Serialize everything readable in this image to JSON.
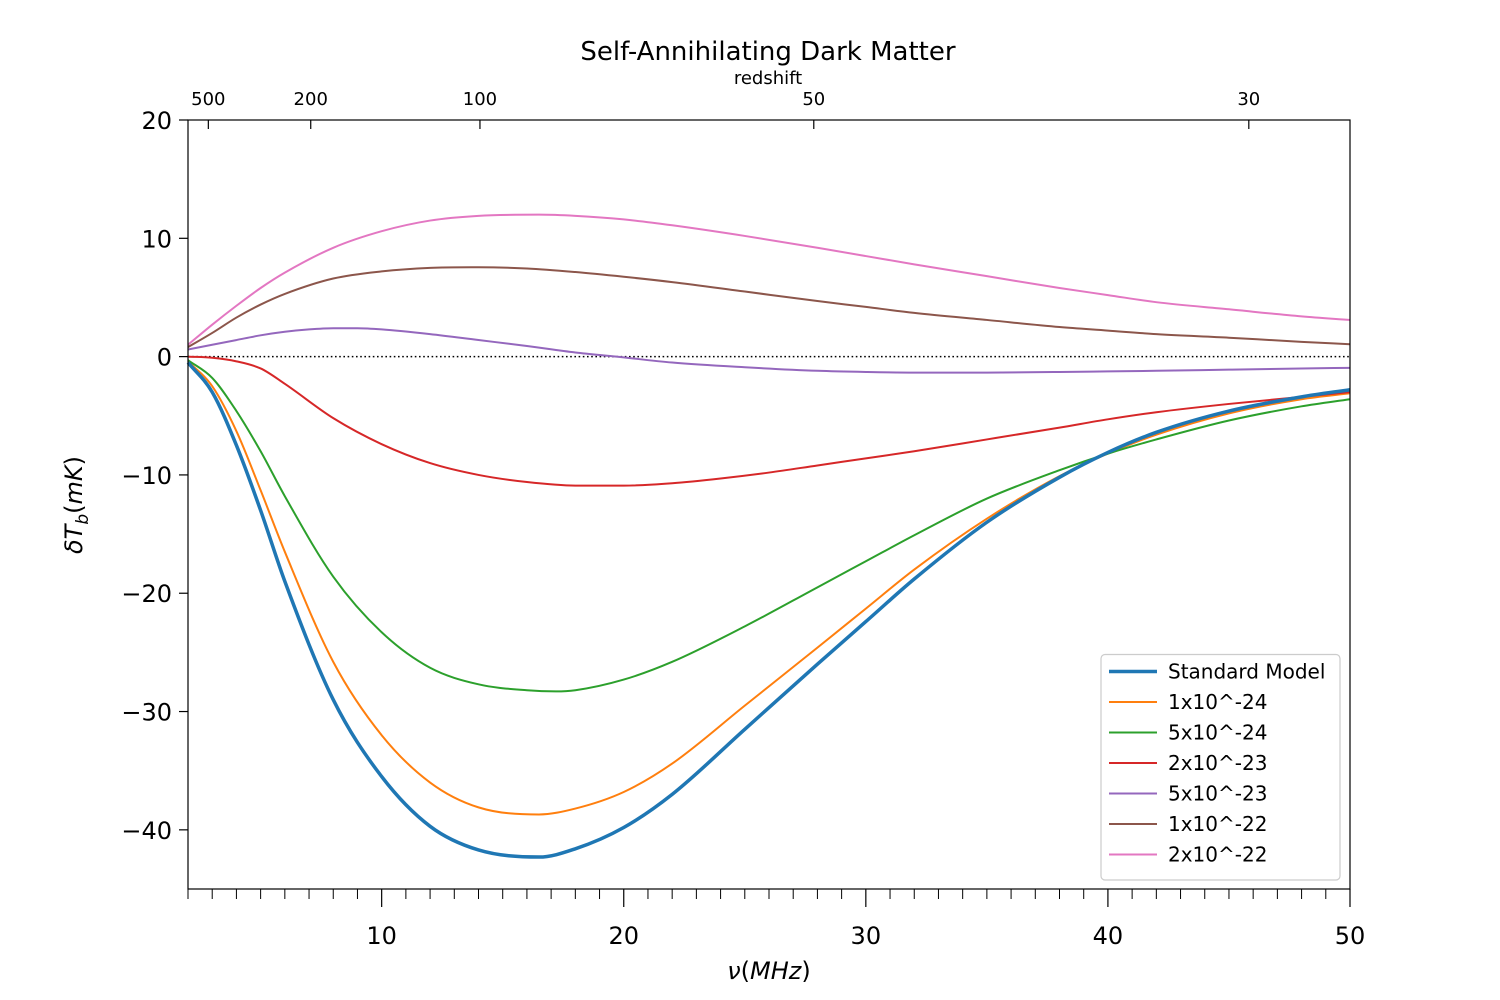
{
  "chart_data": {
    "type": "line",
    "title": "Self-Annihilating Dark Matter",
    "xlabel": "ν(MHz)",
    "ylabel": "δT_b(mK)",
    "secondary_xlabel": "redshift",
    "xlim": [
      2,
      50
    ],
    "ylim": [
      -45,
      20
    ],
    "x_ticks": [
      10,
      20,
      30,
      40,
      50
    ],
    "y_ticks": [
      -40,
      -30,
      -20,
      -10,
      0,
      10,
      20
    ],
    "redshift_ticks": [
      {
        "label": "500",
        "nu": 2.84
      },
      {
        "label": "200",
        "nu": 7.07
      },
      {
        "label": "100",
        "nu": 14.06
      },
      {
        "label": "50",
        "nu": 27.85
      },
      {
        "label": "30",
        "nu": 45.82
      }
    ],
    "reference_line": {
      "y": 0,
      "style": "dotted"
    },
    "legend_position": "lower-right",
    "grid": false,
    "series": [
      {
        "name": "Standard Model",
        "color": "#1f77b4",
        "width": 3.5,
        "x": [
          2,
          3,
          4,
          5,
          6,
          8,
          10,
          12,
          14,
          16.5,
          18,
          20,
          22,
          25,
          28,
          30,
          32,
          35,
          38,
          40,
          42,
          45,
          48,
          50
        ],
        "y": [
          -0.5,
          -3,
          -7.5,
          -13,
          -19,
          -29,
          -35.5,
          -39.7,
          -41.7,
          -42.3,
          -41.6,
          -39.8,
          -37,
          -31.5,
          -26,
          -22.4,
          -18.8,
          -14,
          -10.2,
          -8.1,
          -6.4,
          -4.6,
          -3.4,
          -2.8
        ]
      },
      {
        "name": "1x10^-24",
        "color": "#ff7f0e",
        "width": 2,
        "x": [
          2,
          3,
          4,
          5,
          6,
          8,
          10,
          12,
          14,
          16.5,
          18,
          20,
          22,
          25,
          28,
          30,
          32,
          35,
          38,
          40,
          42,
          45,
          48,
          50
        ],
        "y": [
          -0.4,
          -2.5,
          -6.3,
          -11.3,
          -16.5,
          -25.8,
          -32,
          -36,
          -38.1,
          -38.7,
          -38.2,
          -36.8,
          -34.4,
          -29.5,
          -24.6,
          -21.3,
          -18,
          -13.7,
          -10.1,
          -8.2,
          -6.6,
          -4.8,
          -3.6,
          -3.1
        ]
      },
      {
        "name": "5x10^-24",
        "color": "#2ca02c",
        "width": 2,
        "x": [
          2,
          3,
          4,
          5,
          6,
          8,
          10,
          12,
          14,
          16,
          17.2,
          18,
          20,
          22,
          25,
          28,
          30,
          32,
          35,
          38,
          40,
          42,
          45,
          48,
          50
        ],
        "y": [
          -0.3,
          -1.8,
          -4.6,
          -8,
          -11.8,
          -18.6,
          -23.3,
          -26.3,
          -27.7,
          -28.2,
          -28.3,
          -28.2,
          -27.3,
          -25.8,
          -22.8,
          -19.5,
          -17.3,
          -15.1,
          -12,
          -9.6,
          -8.2,
          -7,
          -5.4,
          -4.2,
          -3.6
        ]
      },
      {
        "name": "2x10^-23",
        "color": "#d62728",
        "width": 2,
        "x": [
          2,
          3,
          4,
          5,
          6,
          8,
          10,
          12,
          14,
          16,
          18,
          20,
          22,
          24,
          26,
          28,
          30,
          32,
          35,
          38,
          40,
          42,
          45,
          48,
          50
        ],
        "y": [
          0,
          -0.1,
          -0.4,
          -1,
          -2.3,
          -5.2,
          -7.4,
          -9,
          -10,
          -10.6,
          -10.9,
          -10.9,
          -10.7,
          -10.3,
          -9.8,
          -9.2,
          -8.6,
          -8,
          -7,
          -6,
          -5.3,
          -4.7,
          -4,
          -3.4,
          -3
        ]
      },
      {
        "name": "5x10^-23",
        "color": "#9467bd",
        "width": 2,
        "x": [
          2,
          3,
          4,
          5,
          6,
          7,
          8,
          9,
          10,
          12,
          14,
          16,
          18,
          19.7,
          22,
          25,
          28,
          30,
          32,
          35,
          38,
          40,
          42,
          45,
          48,
          50
        ],
        "y": [
          0.6,
          1,
          1.4,
          1.8,
          2.1,
          2.3,
          2.4,
          2.4,
          2.3,
          1.9,
          1.4,
          0.9,
          0.35,
          0,
          -0.5,
          -0.9,
          -1.2,
          -1.3,
          -1.35,
          -1.35,
          -1.3,
          -1.25,
          -1.2,
          -1.1,
          -1,
          -0.95
        ]
      },
      {
        "name": "1x10^-22",
        "color": "#8c564b",
        "width": 2,
        "x": [
          2,
          3,
          4,
          5,
          6,
          8,
          10,
          12,
          14,
          16,
          18,
          20,
          22,
          25,
          28,
          30,
          32,
          35,
          38,
          40,
          42,
          45,
          48,
          50
        ],
        "y": [
          0.8,
          2,
          3.3,
          4.4,
          5.3,
          6.6,
          7.2,
          7.5,
          7.55,
          7.45,
          7.15,
          6.75,
          6.3,
          5.5,
          4.7,
          4.2,
          3.7,
          3.1,
          2.5,
          2.2,
          1.9,
          1.6,
          1.25,
          1.05
        ]
      },
      {
        "name": "2x10^-22",
        "color": "#e377c2",
        "width": 2,
        "x": [
          2,
          3,
          4,
          5,
          6,
          8,
          10,
          12,
          14,
          16.5,
          18,
          20,
          22,
          25,
          28,
          30,
          32,
          35,
          38,
          40,
          42,
          45,
          48,
          50
        ],
        "y": [
          1,
          2.7,
          4.3,
          5.8,
          7.1,
          9.2,
          10.6,
          11.5,
          11.9,
          12,
          11.9,
          11.6,
          11.1,
          10.2,
          9.2,
          8.5,
          7.8,
          6.8,
          5.8,
          5.2,
          4.6,
          4,
          3.4,
          3.1
        ]
      }
    ]
  }
}
